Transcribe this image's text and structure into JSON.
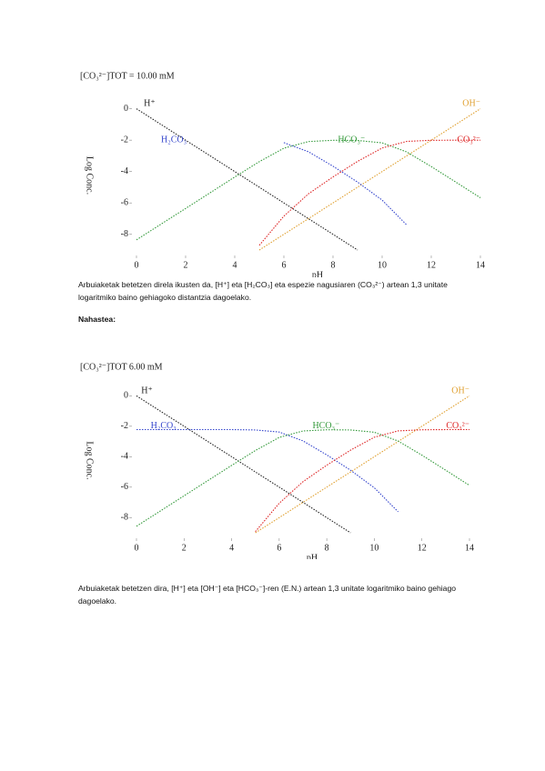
{
  "heading": "Nahastea:",
  "paragraphs": [
    "Arbuiaketak betetzen direla ikusten da, [H⁺] eta [H₂CO₃] eta espezie nagusiaren (CO₃²⁻) artean 1,3 unitate logaritmiko baino gehiagoko distantzia dagoelako.",
    "Arbuiaketak betetzen dira, [H⁺] eta [OH⁻] eta [HCO₃⁻]-ren (E.N.) artean 1,3 unitate logaritmiko baino gehiago dagoelako."
  ],
  "chart_data": [
    {
      "type": "line",
      "title": "[CO₃²⁻]TOT =   10.00 mM",
      "x_label": "pH",
      "y_label": "Log Conc.",
      "x": [
        0,
        1,
        2,
        3,
        4,
        5,
        6,
        7,
        8,
        9,
        10,
        11,
        12,
        13,
        14
      ],
      "xlim": [
        0,
        14
      ],
      "ylim": [
        -9,
        0.5
      ],
      "xticks": [
        0,
        2,
        4,
        6,
        8,
        10,
        12,
        14
      ],
      "yticks": [
        0,
        -2,
        -4,
        -6,
        -8
      ],
      "series": [
        {
          "name": "H⁺",
          "color": "#222222",
          "values": [
            0,
            -1,
            -2,
            -3,
            -4,
            -5,
            -6,
            -7,
            -8,
            -9,
            null,
            null,
            null,
            null,
            null
          ]
        },
        {
          "name": "OH⁻",
          "color": "#e0a030",
          "values": [
            null,
            null,
            null,
            null,
            null,
            -9,
            -8,
            -7,
            -6,
            -5,
            -4,
            -3,
            -2,
            -1,
            0
          ]
        },
        {
          "name": "H₂CO₃",
          "color": "#3344cc",
          "values": [
            null,
            null,
            null,
            null,
            null,
            null,
            -2.16,
            -2.74,
            -3.66,
            -4.67,
            -5.82,
            -7.4,
            null,
            null,
            null
          ]
        },
        {
          "name": "HCO₃⁻",
          "color": "#33993a",
          "values": [
            -8.35,
            -7.35,
            -6.35,
            -5.35,
            -4.35,
            -3.37,
            -2.51,
            -2.09,
            -2.01,
            -2.02,
            -2.17,
            -2.75,
            -3.68,
            -4.67,
            -5.67
          ]
        },
        {
          "name": "CO₃²⁻",
          "color": "#dd2222",
          "values": [
            null,
            null,
            null,
            null,
            null,
            -8.7,
            -6.84,
            -5.42,
            -4.34,
            -3.35,
            -2.5,
            -2.08,
            -2.01,
            -2.0,
            -2.0
          ]
        }
      ]
    },
    {
      "type": "line",
      "title": "[CO₃²⁻]TOT          6.00 mM",
      "x_label": "pH",
      "y_label": "Log Conc.",
      "x": [
        0,
        1,
        2,
        3,
        4,
        5,
        6,
        7,
        8,
        9,
        10,
        11,
        12,
        13,
        14
      ],
      "xlim": [
        0,
        14
      ],
      "ylim": [
        -9,
        0.5
      ],
      "xticks": [
        0,
        2,
        4,
        6,
        8,
        10,
        12,
        14
      ],
      "yticks": [
        0,
        -2,
        -4,
        -6,
        -8
      ],
      "series": [
        {
          "name": "H⁺",
          "color": "#222222",
          "values": [
            0,
            -1,
            -2,
            -3,
            -4,
            -5,
            -6,
            -7,
            -8,
            -9,
            null,
            null,
            null,
            null,
            null
          ]
        },
        {
          "name": "OH⁻",
          "color": "#e0a030",
          "values": [
            null,
            null,
            null,
            null,
            null,
            -9,
            -8,
            -7,
            -6,
            -5,
            -4,
            -3,
            -2,
            -1,
            0
          ]
        },
        {
          "name": "H₂CO₃",
          "color": "#3344cc",
          "values": [
            -2.22,
            -2.22,
            -2.22,
            -2.22,
            -2.22,
            -2.24,
            -2.38,
            -2.96,
            -3.88,
            -4.89,
            -6.04,
            -7.62,
            null,
            null,
            null
          ]
        },
        {
          "name": "HCO₃⁻",
          "color": "#33993a",
          "values": [
            -8.57,
            -7.57,
            -6.57,
            -5.57,
            -4.57,
            -3.59,
            -2.73,
            -2.31,
            -2.23,
            -2.24,
            -2.39,
            -2.97,
            -3.9,
            -4.89,
            -5.89
          ]
        },
        {
          "name": "CO₃²⁻",
          "color": "#dd2222",
          "values": [
            null,
            null,
            null,
            null,
            null,
            -8.92,
            -7.06,
            -5.64,
            -4.56,
            -3.57,
            -2.72,
            -2.3,
            -2.23,
            -2.22,
            -2.22
          ]
        }
      ]
    }
  ]
}
